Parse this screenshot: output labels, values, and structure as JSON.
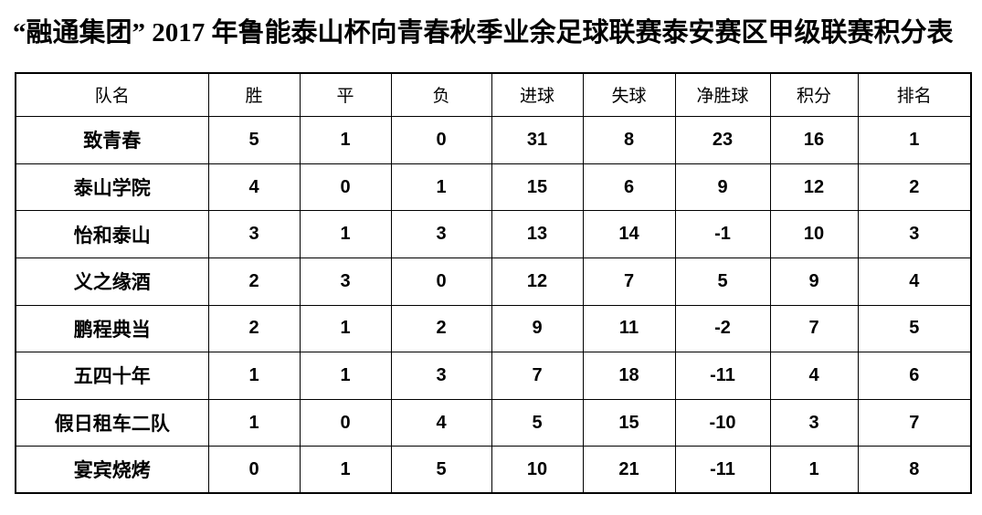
{
  "page": {
    "title": "“融通集团” 2017 年鲁能泰山杯向青春秋季业余足球联赛泰安赛区甲级联赛积分表"
  },
  "table": {
    "columns": [
      "队名",
      "胜",
      "平",
      "负",
      "进球",
      "失球",
      "净胜球",
      "积分",
      "排名"
    ],
    "rows": [
      [
        "致青春",
        "5",
        "1",
        "0",
        "31",
        "8",
        "23",
        "16",
        "1"
      ],
      [
        "泰山学院",
        "4",
        "0",
        "1",
        "15",
        "6",
        "9",
        "12",
        "2"
      ],
      [
        "怡和泰山",
        "3",
        "1",
        "3",
        "13",
        "14",
        "-1",
        "10",
        "3"
      ],
      [
        "义之缘酒",
        "2",
        "3",
        "0",
        "12",
        "7",
        "5",
        "9",
        "4"
      ],
      [
        "鹏程典当",
        "2",
        "1",
        "2",
        "9",
        "11",
        "-2",
        "7",
        "5"
      ],
      [
        "五四十年",
        "1",
        "1",
        "3",
        "7",
        "18",
        "-11",
        "4",
        "6"
      ],
      [
        "假日租车二队",
        "1",
        "0",
        "4",
        "5",
        "15",
        "-10",
        "3",
        "7"
      ],
      [
        "宴宾烧烤",
        "0",
        "1",
        "5",
        "10",
        "21",
        "-11",
        "1",
        "8"
      ]
    ]
  }
}
